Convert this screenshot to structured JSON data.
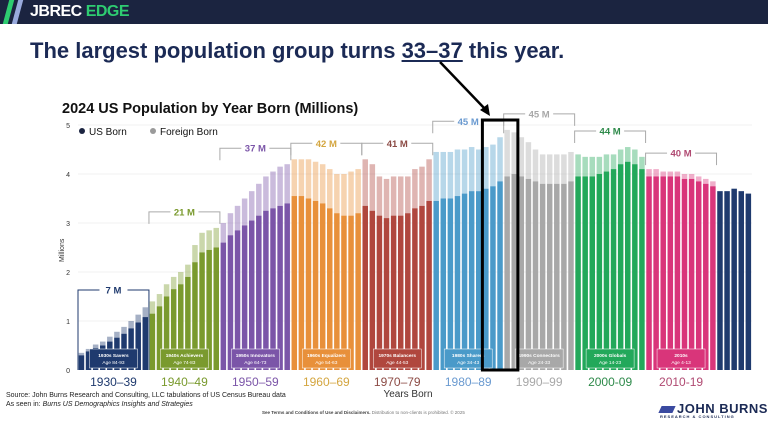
{
  "brand": {
    "name_part1": "JBREC",
    "name_part2": "EDGE"
  },
  "headline": {
    "prefix": "The largest population group turns ",
    "highlight": "33–37",
    "suffix": " this year."
  },
  "source": {
    "line1": "Source: John Burns Research and Consulting, LLC tabulations of US Census Bureau data",
    "line2_prefix": "As seen in: ",
    "line2_italic": "Burns US Demographics Insights and Strategies"
  },
  "terms": {
    "link": "See Terms and Conditions of Use and Disclaimers.",
    "rest": " Distribution to non-clients is prohibited. © 2025"
  },
  "logo": {
    "name": "JOHN BURNS",
    "tagline": "RESEARCH & CONSULTING"
  },
  "chart_data": {
    "type": "bar",
    "stacked": true,
    "title": "2024 US Population by Year Born (Millions)",
    "xlabel": "Years Born",
    "ylabel": "Millions",
    "ylim": [
      0,
      5
    ],
    "yticks": [
      "0",
      "1",
      "2",
      "3",
      "4",
      "5"
    ],
    "legend": {
      "placement": "top-left",
      "items": [
        {
          "label": "US Born",
          "color": "#1b2440"
        },
        {
          "label": "Foreign Born",
          "color": "#9a9a9a"
        }
      ]
    },
    "x_start_year": 1930,
    "series": [
      {
        "name": "US Born",
        "values": [
          0.3,
          0.38,
          0.45,
          0.5,
          0.58,
          0.66,
          0.74,
          0.85,
          0.97,
          1.08,
          1.15,
          1.3,
          1.5,
          1.65,
          1.75,
          1.9,
          2.2,
          2.4,
          2.45,
          2.5,
          2.6,
          2.75,
          2.85,
          2.95,
          3.05,
          3.15,
          3.25,
          3.3,
          3.35,
          3.4,
          3.55,
          3.55,
          3.5,
          3.45,
          3.4,
          3.3,
          3.2,
          3.15,
          3.15,
          3.2,
          3.35,
          3.25,
          3.15,
          3.1,
          3.15,
          3.15,
          3.2,
          3.3,
          3.35,
          3.45,
          3.45,
          3.5,
          3.5,
          3.55,
          3.6,
          3.65,
          3.65,
          3.7,
          3.75,
          3.85,
          3.95,
          4.0,
          3.95,
          3.9,
          3.85,
          3.8,
          3.8,
          3.8,
          3.8,
          3.85,
          3.95,
          3.95,
          3.95,
          4.0,
          4.05,
          4.1,
          4.2,
          4.25,
          4.2,
          4.1,
          3.95,
          3.95,
          3.95,
          3.95,
          3.95,
          3.9,
          3.9,
          3.85,
          3.8,
          3.75,
          3.65,
          3.65,
          3.7,
          3.65,
          3.6
        ]
      },
      {
        "name": "Foreign Born",
        "values": [
          0.05,
          0.05,
          0.07,
          0.08,
          0.1,
          0.12,
          0.14,
          0.15,
          0.16,
          0.2,
          0.25,
          0.25,
          0.25,
          0.25,
          0.25,
          0.25,
          0.35,
          0.4,
          0.4,
          0.4,
          0.4,
          0.45,
          0.5,
          0.55,
          0.6,
          0.65,
          0.7,
          0.75,
          0.8,
          0.8,
          0.75,
          0.75,
          0.8,
          0.8,
          0.8,
          0.8,
          0.8,
          0.85,
          0.9,
          0.9,
          0.95,
          0.95,
          0.8,
          0.8,
          0.8,
          0.8,
          0.75,
          0.8,
          0.8,
          0.85,
          1.0,
          0.95,
          0.95,
          0.95,
          0.9,
          0.9,
          0.85,
          0.85,
          0.85,
          0.9,
          0.95,
          0.85,
          0.8,
          0.75,
          0.65,
          0.6,
          0.6,
          0.6,
          0.6,
          0.6,
          0.45,
          0.4,
          0.4,
          0.35,
          0.35,
          0.3,
          0.3,
          0.3,
          0.3,
          0.25,
          0.15,
          0.15,
          0.1,
          0.1,
          0.1,
          0.1,
          0.1,
          0.1,
          0.1,
          0.1,
          0,
          0,
          0,
          0,
          0
        ]
      }
    ],
    "decades": [
      {
        "range": "1930–39",
        "total": "7 M",
        "name": "1930s Savers",
        "ages": "Age 84-93",
        "color": "#1f3a6e",
        "label_color": "#1f3a6e"
      },
      {
        "range": "1940–49",
        "total": "21 M",
        "name": "1940s Achievers",
        "ages": "Age 74-83",
        "color": "#7a9a2e",
        "label_color": "#7a9a2e"
      },
      {
        "range": "1950–59",
        "total": "37 M",
        "name": "1950s Innovators",
        "ages": "Age 64-73",
        "color": "#7b55a8",
        "label_color": "#7b55a8"
      },
      {
        "range": "1960–69",
        "total": "42 M",
        "name": "1960s Equalizers",
        "ages": "Age 54-63",
        "color": "#e8903a",
        "label_color": "#d4a640"
      },
      {
        "range": "1970–79",
        "total": "41 M",
        "name": "1970s Balancers",
        "ages": "Age 44-53",
        "color": "#b0473e",
        "label_color": "#8c4b45"
      },
      {
        "range": "1980–89",
        "total": "45 M",
        "name": "1980s Sharers",
        "ages": "Age 34-43",
        "color": "#4a9ac9",
        "label_color": "#6a9ad0"
      },
      {
        "range": "1990–99",
        "total": "45 M",
        "name": "1990s Connectors",
        "ages": "Age 24-33",
        "color": "#a8a8a8",
        "label_color": "#a8a8a8"
      },
      {
        "range": "2000-09",
        "total": "44 M",
        "name": "2000s Globals",
        "ages": "Age 14-23",
        "color": "#22a85a",
        "label_color": "#2e8a4a"
      },
      {
        "range": "2010-19",
        "total": "40 M",
        "name": "2010s",
        "ages": "Age 4-13",
        "color": "#d9357a",
        "label_color": "#b04a72"
      },
      {
        "range": "",
        "total": "",
        "name": "",
        "ages": "",
        "color": "#1f3a6e",
        "label_color": "#1f3a6e"
      }
    ],
    "highlight": {
      "years": [
        1987,
        1991
      ]
    }
  }
}
